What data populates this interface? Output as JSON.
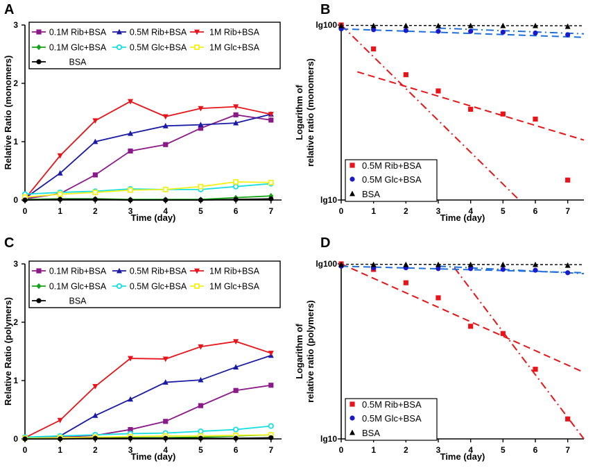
{
  "chart_data": [
    {
      "panel": "A",
      "type": "line",
      "xlabel": "Time (day)",
      "ylabel": "Relative Ratio (monomers)",
      "xlim": [
        0,
        7.3
      ],
      "ylim": [
        0,
        3
      ],
      "xticks": [
        0,
        1,
        2,
        3,
        4,
        5,
        6,
        7
      ],
      "yticks": [
        0,
        1,
        2,
        3
      ],
      "x": [
        0,
        1,
        2,
        3,
        4,
        5,
        6,
        7
      ],
      "series": [
        {
          "name": "0.1M Rib+BSA",
          "color": "#8B1A89",
          "marker": "square",
          "values": [
            0.02,
            0.11,
            0.43,
            0.84,
            0.95,
            1.23,
            1.46,
            1.37
          ]
        },
        {
          "name": "0.5M Rib+BSA",
          "color": "#1A1AA6",
          "marker": "triangle-up",
          "values": [
            0.03,
            0.46,
            1.0,
            1.14,
            1.27,
            1.29,
            1.32,
            1.47
          ]
        },
        {
          "name": "1M Rib+BSA",
          "color": "#E8141A",
          "marker": "triangle-down",
          "values": [
            0.02,
            0.76,
            1.36,
            1.69,
            1.43,
            1.57,
            1.6,
            1.47
          ]
        },
        {
          "name": "0.1M Glc+BSA",
          "color": "#17A317",
          "marker": "diamond",
          "values": [
            0.01,
            0.02,
            0.02,
            0.01,
            0.01,
            0.01,
            0.04,
            0.07
          ]
        },
        {
          "name": "0.5M Glc+BSA",
          "color": "#16E0E0",
          "marker": "circle-open",
          "values": [
            0.1,
            0.13,
            0.15,
            0.19,
            0.18,
            0.18,
            0.23,
            0.28
          ]
        },
        {
          "name": "1M Glc+BSA",
          "color": "#F2F21A",
          "marker": "square-open",
          "values": [
            0.05,
            0.1,
            0.13,
            0.17,
            0.18,
            0.23,
            0.31,
            0.3
          ]
        },
        {
          "name": "BSA",
          "color": "#000000",
          "marker": "circle",
          "values": [
            0.0,
            0.01,
            0.01,
            0.0,
            0.0,
            0.0,
            0.01,
            0.02
          ]
        }
      ]
    },
    {
      "panel": "B",
      "type": "scatter",
      "xlabel": "Time (day)",
      "ylabel": "Logarithm of relative ratio (monomers)",
      "xlim": [
        0,
        7.5
      ],
      "xticks": [
        0,
        1,
        2,
        3,
        4,
        5,
        6,
        7
      ],
      "ytick_labels": [
        "lg10",
        "lg100"
      ],
      "ylim": [
        10,
        100
      ],
      "series": [
        {
          "name": "0.5M Rib+BSA",
          "color": "#E8141A",
          "marker": "square",
          "x": [
            0,
            1,
            2,
            3,
            4,
            5,
            6,
            7
          ],
          "values": [
            100,
            73,
            52,
            42,
            33,
            31,
            29,
            13
          ]
        },
        {
          "name": "0.5M Glc+BSA",
          "color": "#1A1ACC",
          "marker": "circle",
          "x": [
            0,
            1,
            2,
            3,
            4,
            5,
            6,
            7
          ],
          "values": [
            95,
            94,
            93,
            92,
            92,
            91,
            90,
            88
          ]
        },
        {
          "name": "BSA",
          "color": "#000000",
          "marker": "triangle-up",
          "x": [
            0,
            1,
            2,
            3,
            4,
            5,
            6,
            7
          ],
          "values": [
            99,
            99,
            99,
            99,
            99,
            99,
            99,
            98
          ]
        }
      ],
      "fit_lines": [
        {
          "color": "#E8141A",
          "style": "dashdot",
          "from": [
            0,
            100
          ],
          "to": [
            5.5,
            10
          ]
        },
        {
          "color": "#E8141A",
          "style": "dashed",
          "from": [
            0.5,
            54
          ],
          "to": [
            7.5,
            22
          ]
        },
        {
          "color": "#1E6FD9",
          "style": "dashed",
          "from": [
            0,
            95
          ],
          "to": [
            7.5,
            85
          ]
        },
        {
          "color": "#1E6FD9",
          "style": "dashdot",
          "from": [
            3,
            96
          ],
          "to": [
            7.5,
            89
          ]
        },
        {
          "color": "#000000",
          "style": "dashed",
          "from": [
            0,
            99.5
          ],
          "to": [
            7.5,
            99
          ]
        }
      ]
    },
    {
      "panel": "C",
      "type": "line",
      "xlabel": "Time (day)",
      "ylabel": "Relative Ratio (polymers)",
      "xlim": [
        0,
        7.3
      ],
      "ylim": [
        0,
        3
      ],
      "xticks": [
        0,
        1,
        2,
        3,
        4,
        5,
        6,
        7
      ],
      "yticks": [
        0,
        1,
        2,
        3
      ],
      "x": [
        0,
        1,
        2,
        3,
        4,
        5,
        6,
        7
      ],
      "series": [
        {
          "name": "0.1M Rib+BSA",
          "color": "#8B1A89",
          "marker": "square",
          "values": [
            0.02,
            0.03,
            0.06,
            0.16,
            0.3,
            0.57,
            0.83,
            0.92
          ]
        },
        {
          "name": "0.5M Rib+BSA",
          "color": "#1A1AA6",
          "marker": "triangle-up",
          "values": [
            0.02,
            0.05,
            0.4,
            0.68,
            0.97,
            1.01,
            1.23,
            1.43
          ]
        },
        {
          "name": "1M Rib+BSA",
          "color": "#E8141A",
          "marker": "triangle-down",
          "values": [
            0.02,
            0.32,
            0.9,
            1.38,
            1.37,
            1.58,
            1.67,
            1.47
          ]
        },
        {
          "name": "0.1M Glc+BSA",
          "color": "#17A317",
          "marker": "diamond",
          "values": [
            0.01,
            0.01,
            0.02,
            0.02,
            0.02,
            0.03,
            0.05,
            0.07
          ]
        },
        {
          "name": "0.5M Glc+BSA",
          "color": "#16E0E0",
          "marker": "circle-open",
          "values": [
            0.03,
            0.05,
            0.07,
            0.09,
            0.1,
            0.13,
            0.16,
            0.22
          ]
        },
        {
          "name": "1M Glc+BSA",
          "color": "#F2F21A",
          "marker": "square-open",
          "values": [
            0.01,
            0.02,
            0.03,
            0.04,
            0.05,
            0.05,
            0.06,
            0.07
          ]
        },
        {
          "name": "BSA",
          "color": "#000000",
          "marker": "circle",
          "values": [
            0.0,
            0.0,
            0.01,
            0.01,
            0.01,
            0.01,
            0.01,
            0.02
          ]
        }
      ]
    },
    {
      "panel": "D",
      "type": "scatter",
      "xlabel": "Time (day)",
      "ylabel": "Logarithm of relative ratio (polymers)",
      "xlim": [
        0,
        7.5
      ],
      "xticks": [
        0,
        1,
        2,
        3,
        4,
        5,
        6,
        7
      ],
      "ytick_labels": [
        "lg10",
        "lg100"
      ],
      "ylim": [
        10,
        100
      ],
      "series": [
        {
          "name": "0.5M Rib+BSA",
          "color": "#E8141A",
          "marker": "square",
          "x": [
            0,
            1,
            2,
            3,
            4,
            5,
            6,
            7
          ],
          "values": [
            100,
            93,
            78,
            64,
            44,
            40,
            25,
            13
          ]
        },
        {
          "name": "0.5M Glc+BSA",
          "color": "#1A1ACC",
          "marker": "circle",
          "x": [
            0,
            1,
            2,
            3,
            4,
            5,
            6,
            7
          ],
          "values": [
            97,
            95,
            95,
            94,
            94,
            93,
            92,
            89
          ]
        },
        {
          "name": "BSA",
          "color": "#000000",
          "marker": "triangle-up",
          "x": [
            0,
            1,
            2,
            3,
            4,
            5,
            6,
            7
          ],
          "values": [
            99,
            99,
            99,
            99,
            99,
            99,
            99,
            98
          ]
        }
      ],
      "fit_lines": [
        {
          "color": "#E8141A",
          "style": "dashed",
          "from": [
            0,
            100
          ],
          "to": [
            7.5,
            24
          ]
        },
        {
          "color": "#E8141A",
          "style": "dashdot",
          "from": [
            3.5,
            95
          ],
          "to": [
            7.5,
            10
          ]
        },
        {
          "color": "#1E6FD9",
          "style": "dashed",
          "from": [
            0,
            97
          ],
          "to": [
            7.5,
            89
          ]
        },
        {
          "color": "#1E6FD9",
          "style": "dashdot",
          "from": [
            3,
            97
          ],
          "to": [
            7.5,
            88
          ]
        },
        {
          "color": "#000000",
          "style": "dashed",
          "from": [
            0,
            99.5
          ],
          "to": [
            7.5,
            99
          ]
        }
      ]
    }
  ]
}
